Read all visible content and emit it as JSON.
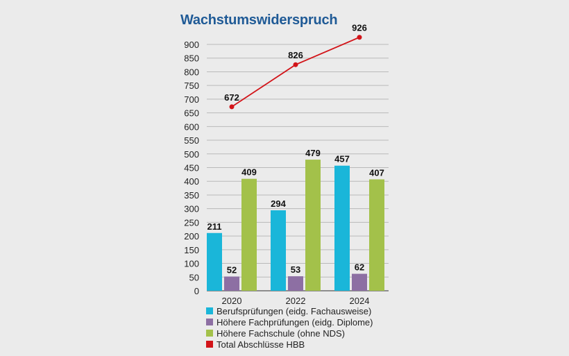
{
  "chart_data": {
    "type": "bar",
    "title": "Wachstumswiderspruch",
    "categories": [
      "2020",
      "2022",
      "2024"
    ],
    "ylim": [
      0,
      900
    ],
    "yticks": [
      0,
      50,
      100,
      150,
      200,
      250,
      300,
      350,
      400,
      450,
      500,
      550,
      600,
      650,
      700,
      750,
      800,
      850,
      900
    ],
    "grid": true,
    "legend_position": "bottom",
    "series": [
      {
        "name": "Berufsprüfungen (eidg. Fachausweise)",
        "type": "bar",
        "color": "#1ab6d9",
        "values": [
          211,
          294,
          457
        ]
      },
      {
        "name": "Höhere Fachprüfungen (eidg. Diplome)",
        "type": "bar",
        "color": "#8d6fa3",
        "values": [
          52,
          53,
          62
        ]
      },
      {
        "name": "Höhere Fachschule (ohne NDS)",
        "type": "bar",
        "color": "#a3c14a",
        "values": [
          409,
          479,
          407
        ]
      },
      {
        "name": "Total Abschlüsse HBB",
        "type": "line",
        "color": "#d21419",
        "values": [
          672,
          826,
          926
        ]
      }
    ]
  }
}
